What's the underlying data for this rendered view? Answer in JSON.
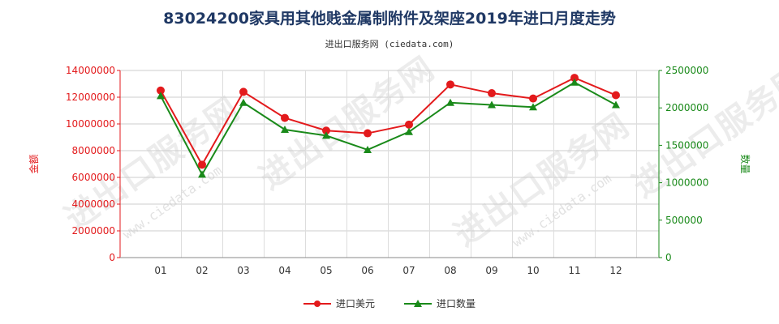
{
  "title": "83024200家具用其他贱金属制附件及架座2019年进口月度走势",
  "subtitle": "进出口服务网 (ciedata.com)",
  "watermark": "进出口服务网",
  "watermark_url": "www.ciedata.com",
  "colors": {
    "left": "#e31a1c",
    "right": "#1a8a1a",
    "grid": "#cccccc",
    "title": "#1f3864"
  },
  "chart_data": {
    "type": "line",
    "categories": [
      "01",
      "02",
      "03",
      "04",
      "05",
      "06",
      "07",
      "08",
      "09",
      "10",
      "11",
      "12"
    ],
    "series": [
      {
        "name": "进口美元",
        "axis": "left",
        "color": "#e31a1c",
        "values": [
          12500000,
          6950000,
          12400000,
          10450000,
          9500000,
          9300000,
          9950000,
          12950000,
          12300000,
          11900000,
          13450000,
          12150000
        ]
      },
      {
        "name": "进口数量",
        "axis": "right",
        "color": "#1a8a1a",
        "values": [
          2160000,
          1110000,
          2070000,
          1710000,
          1630000,
          1440000,
          1680000,
          2070000,
          2040000,
          2010000,
          2340000,
          2040000
        ]
      }
    ],
    "left_axis": {
      "label": "金额",
      "ylim": [
        0,
        14000000
      ],
      "ticks": [
        "0",
        "2000000",
        "4000000",
        "6000000",
        "8000000",
        "10000000",
        "12000000",
        "14000000"
      ]
    },
    "right_axis": {
      "label": "数量",
      "ylim": [
        0,
        2500000
      ],
      "ticks": [
        "0",
        "500000",
        "1000000",
        "1500000",
        "2000000",
        "2500000"
      ]
    },
    "grid": true,
    "legend_position": "bottom"
  }
}
